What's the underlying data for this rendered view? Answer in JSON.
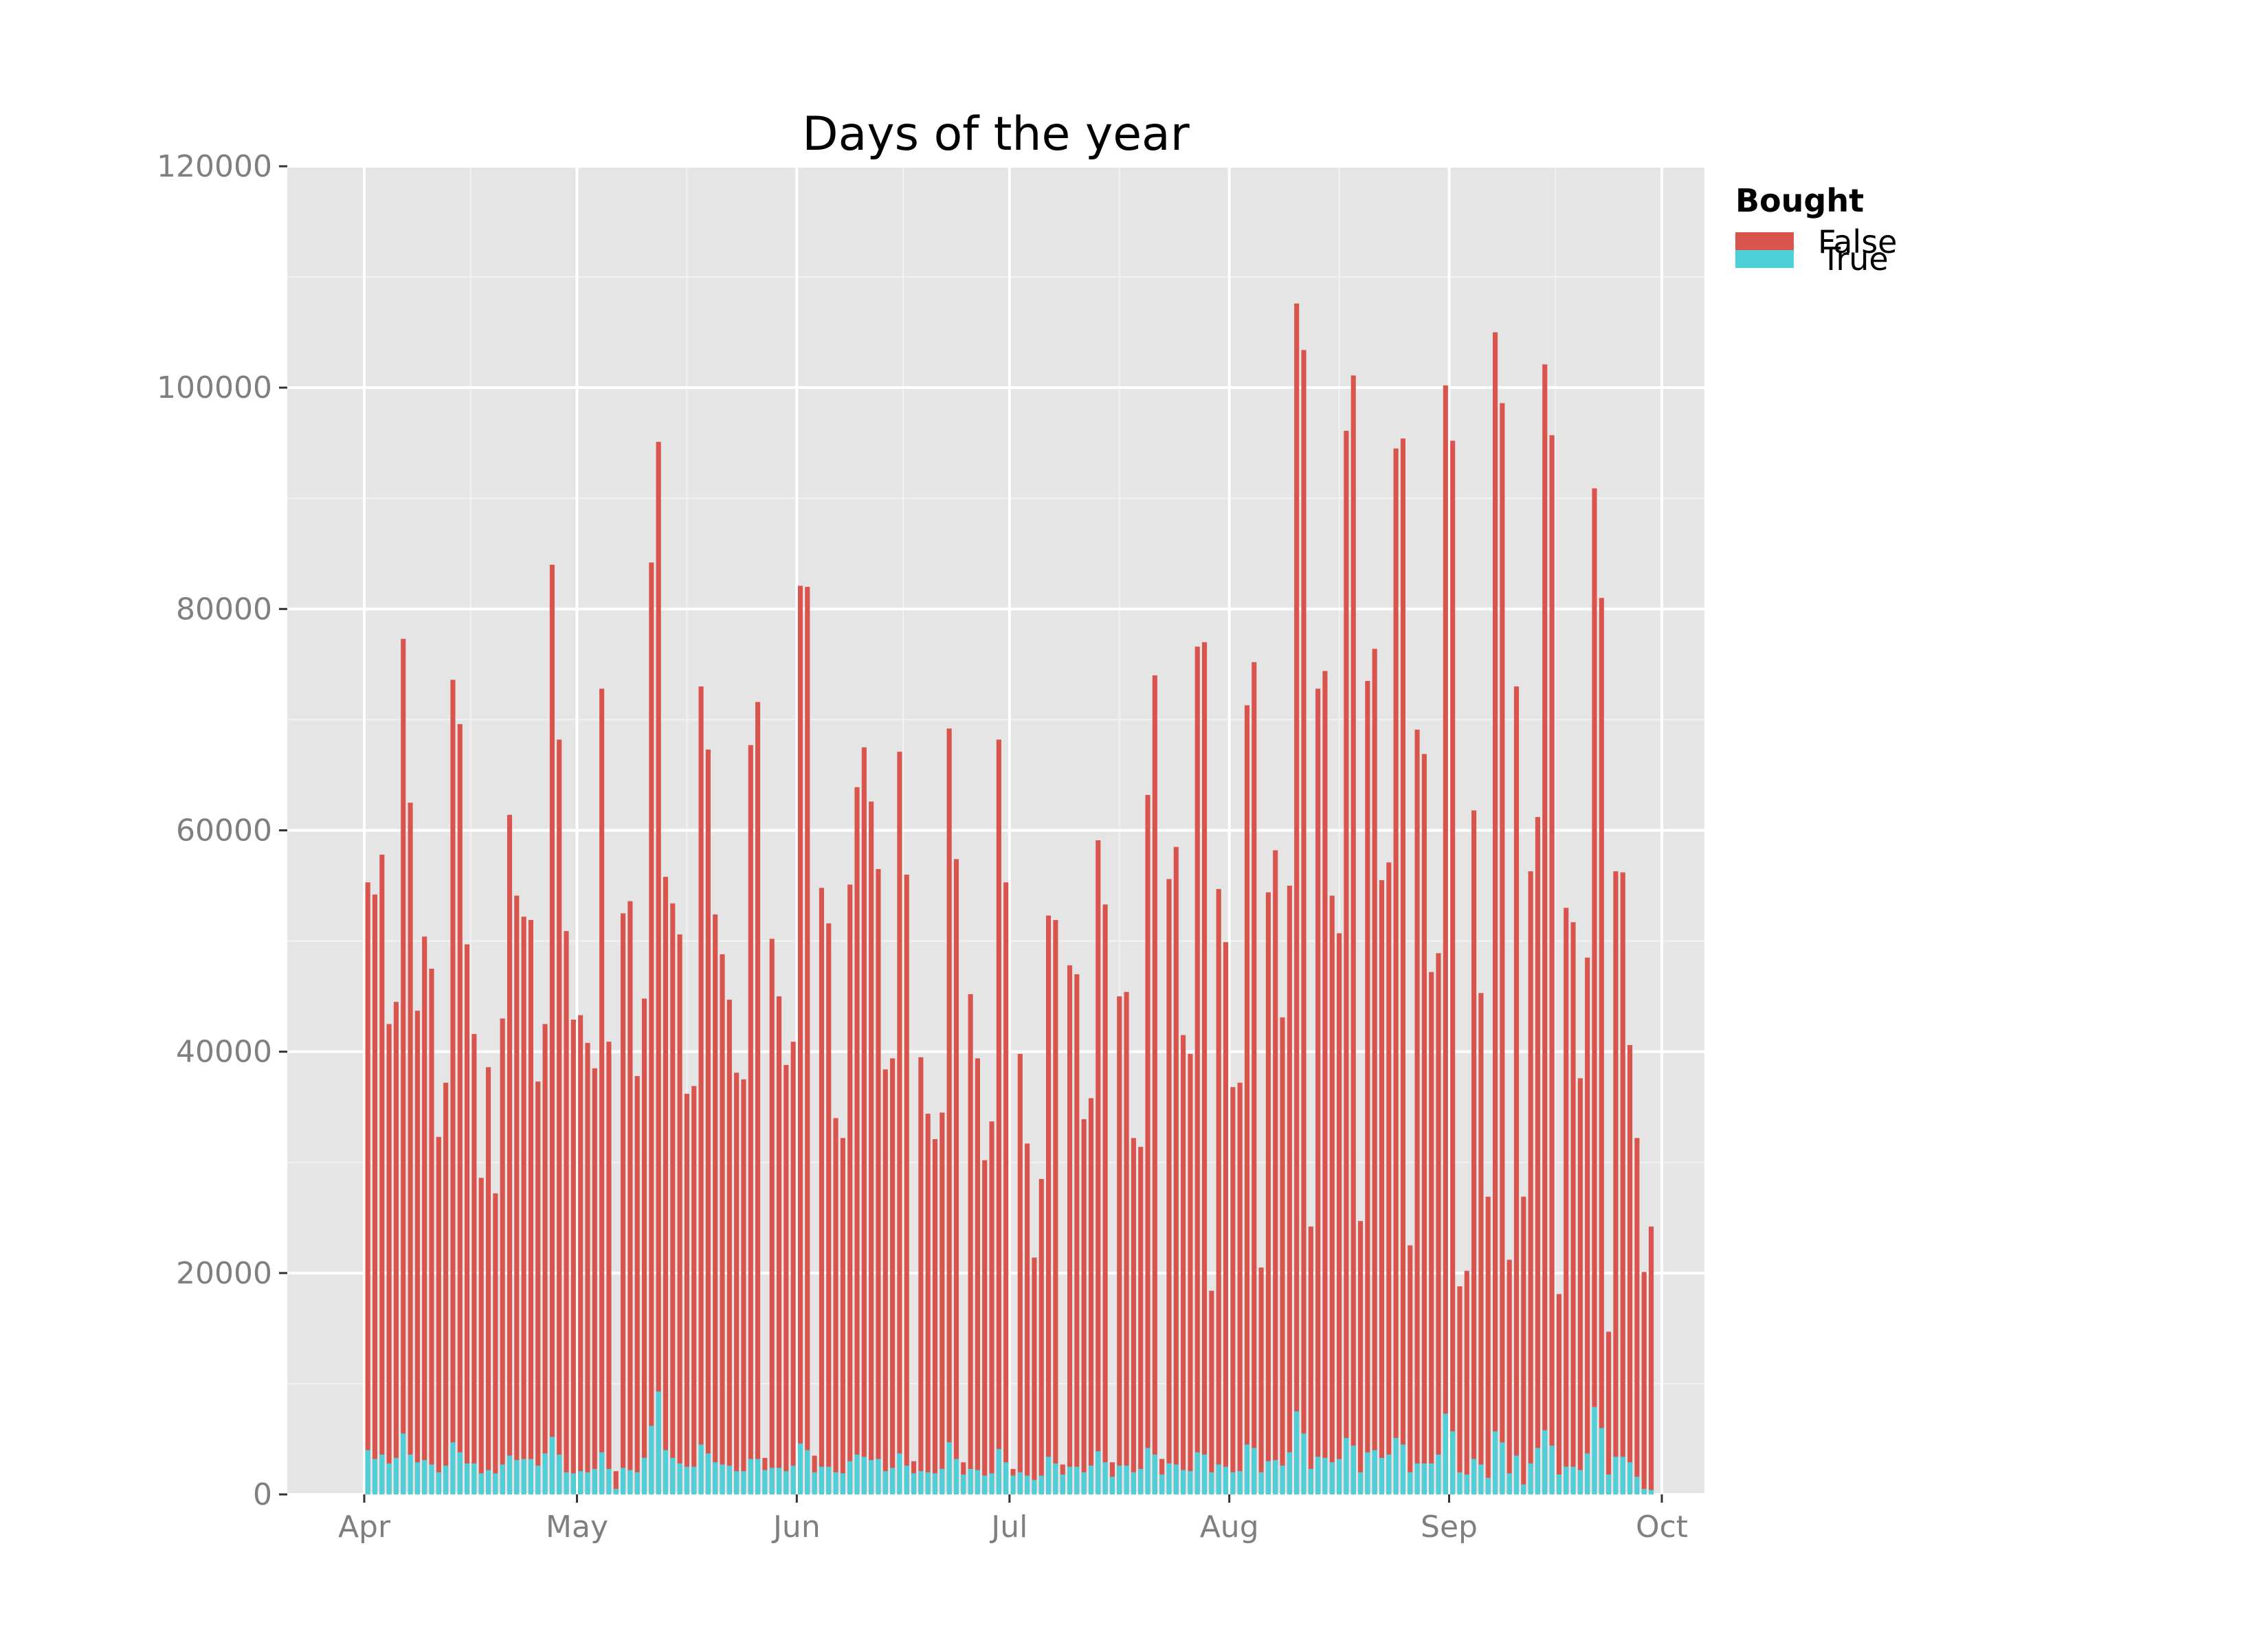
{
  "chart_data": {
    "type": "bar",
    "stacked": false,
    "title": "Days of the year",
    "xlabel": "",
    "ylabel": "",
    "ylim": [
      0,
      120000
    ],
    "yticks": [
      0,
      20000,
      40000,
      60000,
      80000,
      100000,
      120000
    ],
    "x_start_date": "2015-04-01",
    "x_end_date": "2015-10-01",
    "x_ticks": [
      {
        "label": "Apr",
        "date": "2015-04-01"
      },
      {
        "label": "May",
        "date": "2015-05-01"
      },
      {
        "label": "Jun",
        "date": "2015-06-01"
      },
      {
        "label": "Jul",
        "date": "2015-07-01"
      },
      {
        "label": "Aug",
        "date": "2015-08-01"
      },
      {
        "label": "Sep",
        "date": "2015-09-01"
      },
      {
        "label": "Oct",
        "date": "2015-10-01"
      }
    ],
    "grid": true,
    "legend": {
      "title": "Bought",
      "position": "right"
    },
    "series": [
      {
        "name": "False",
        "color": "#d9544d",
        "values": [
          55300,
          54200,
          57800,
          42500,
          44500,
          77300,
          62500,
          43700,
          50400,
          47500,
          32300,
          37200,
          73600,
          69600,
          49700,
          41600,
          28600,
          38600,
          27200,
          43000,
          61400,
          54100,
          52200,
          51900,
          37300,
          42500,
          84000,
          68200,
          50900,
          42900,
          43300,
          40800,
          38500,
          72800,
          40900,
          2100,
          52500,
          53600,
          37800,
          44800,
          84200,
          95100,
          55800,
          53400,
          50600,
          36200,
          36900,
          73000,
          67300,
          52400,
          48800,
          44700,
          38100,
          37500,
          67700,
          71600,
          3300,
          50200,
          45000,
          38800,
          40900,
          82100,
          82000,
          3500,
          54800,
          51600,
          34000,
          32200,
          55100,
          63900,
          67500,
          62600,
          56500,
          38400,
          39400,
          67100,
          56000,
          3000,
          39500,
          34400,
          32100,
          34500,
          69200,
          57400,
          2900,
          45200,
          39400,
          30200,
          33700,
          68200,
          55300,
          2300,
          39800,
          31700,
          21400,
          28500,
          52300,
          51900,
          2700,
          47800,
          47000,
          33900,
          35800,
          59100,
          53300,
          2900,
          45000,
          45400,
          32200,
          31400,
          63200,
          74000,
          3200,
          55600,
          58500,
          41500,
          39800,
          76600,
          77000,
          18400,
          54700,
          49900,
          36800,
          37200,
          71300,
          75200,
          20500,
          54400,
          58200,
          43100,
          55000,
          107600,
          103400,
          24200,
          72800,
          74400,
          54100,
          50700,
          96100,
          101100,
          24700,
          73500,
          76400,
          55500,
          57100,
          94500,
          95400,
          22500,
          69100,
          66900,
          47200,
          48900,
          100200,
          95200,
          18800,
          20200,
          61800,
          45300,
          26900,
          105000,
          98600,
          21200,
          73000,
          26900,
          56300,
          61200,
          102100,
          95700,
          18100,
          53000,
          51700,
          37600,
          48500,
          90900,
          81000,
          14700,
          56300,
          56200,
          40600,
          32200,
          20100,
          24200
        ]
      },
      {
        "name": "True",
        "color": "#4fcfd8",
        "values": [
          4000,
          3200,
          3600,
          2800,
          3300,
          5500,
          3600,
          2900,
          3100,
          2700,
          2000,
          2600,
          4700,
          3800,
          2800,
          2800,
          1900,
          2200,
          1900,
          2700,
          3500,
          3100,
          3200,
          3200,
          2600,
          3700,
          5200,
          3600,
          2000,
          1900,
          2100,
          2000,
          2300,
          3800,
          2300,
          500,
          2400,
          2200,
          2000,
          3300,
          6200,
          9300,
          4000,
          3300,
          2800,
          2500,
          2500,
          4500,
          3700,
          2900,
          2700,
          2600,
          2100,
          2100,
          3200,
          3200,
          2200,
          2400,
          2400,
          2100,
          2600,
          4600,
          4000,
          2000,
          2500,
          2500,
          2000,
          1900,
          3000,
          3600,
          3400,
          3100,
          3200,
          2100,
          2400,
          3700,
          2600,
          1900,
          2100,
          2000,
          1900,
          2300,
          4700,
          3200,
          1800,
          2300,
          2200,
          1700,
          1900,
          4100,
          2900,
          1700,
          2000,
          1700,
          1300,
          1700,
          3400,
          2800,
          1800,
          2500,
          2500,
          2000,
          2600,
          3900,
          2900,
          1600,
          2600,
          2600,
          2000,
          2300,
          4200,
          3600,
          1800,
          2800,
          2700,
          2200,
          2100,
          3800,
          3600,
          2000,
          2700,
          2500,
          2000,
          2100,
          4500,
          4200,
          2000,
          3000,
          3100,
          2600,
          3800,
          7500,
          5500,
          2300,
          3400,
          3300,
          2900,
          3200,
          5100,
          4400,
          2000,
          3800,
          4000,
          3300,
          3600,
          5100,
          4500,
          2000,
          2800,
          2800,
          2800,
          3600,
          7300,
          5700,
          2000,
          1800,
          3200,
          2700,
          1500,
          5700,
          4700,
          1900,
          3500,
          900,
          2800,
          4200,
          5800,
          4400,
          1800,
          2500,
          2500,
          2200,
          3700,
          7900,
          6000,
          1800,
          3400,
          3400,
          2900,
          1600,
          500,
          400
        ]
      }
    ]
  }
}
